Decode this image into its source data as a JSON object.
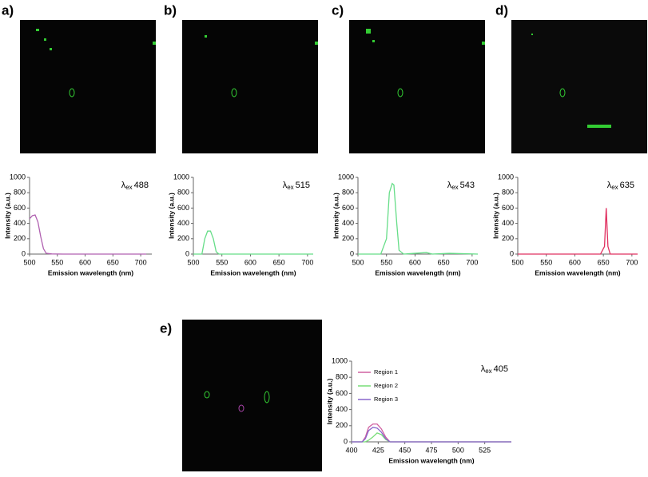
{
  "chart_data": [
    {
      "type": "line",
      "panel": "a)",
      "annotation": {
        "symbol": "λ",
        "subscript": "ex",
        "text": "488"
      },
      "ylabel": "Intensity (a.u.)",
      "xlabel": "Emission wavelength (nm)",
      "x": [
        500,
        505,
        510,
        515,
        520,
        525,
        530,
        540,
        560,
        600,
        650,
        700,
        710
      ],
      "series": [
        {
          "color": "#b060b0",
          "values": [
            460,
            500,
            510,
            420,
            230,
            70,
            10,
            2,
            0,
            0,
            0,
            0,
            0
          ]
        }
      ],
      "xlim": [
        500,
        720
      ],
      "xticks": [
        500,
        550,
        600,
        650,
        700
      ],
      "ylim": [
        0,
        1000
      ],
      "yticks": [
        0,
        200,
        400,
        600,
        800,
        1000
      ]
    },
    {
      "type": "line",
      "panel": "b)",
      "annotation": {
        "symbol": "λ",
        "subscript": "ex",
        "text": "515"
      },
      "ylabel": "Intensity (a.u.)",
      "xlabel": "Emission wavelength (nm)",
      "x": [
        500,
        515,
        520,
        525,
        530,
        535,
        540,
        545,
        600,
        700,
        710
      ],
      "series": [
        {
          "color": "#66dd88",
          "values": [
            0,
            0,
            200,
            300,
            300,
            200,
            30,
            0,
            0,
            0,
            0
          ]
        }
      ],
      "xlim": [
        500,
        710
      ],
      "xticks": [
        500,
        550,
        600,
        650,
        700
      ],
      "ylim": [
        0,
        1000
      ],
      "yticks": [
        0,
        200,
        400,
        600,
        800,
        1000
      ]
    },
    {
      "type": "line",
      "panel": "c)",
      "annotation": {
        "symbol": "λ",
        "subscript": "ex",
        "text": "543"
      },
      "ylabel": "Intensity (a.u.)",
      "xlabel": "Emission wavelength (nm)",
      "x": [
        500,
        540,
        550,
        555,
        560,
        563,
        568,
        572,
        580,
        620,
        630,
        660,
        710
      ],
      "series": [
        {
          "color": "#66dd88",
          "values": [
            0,
            0,
            200,
            800,
            920,
            900,
            400,
            50,
            0,
            20,
            0,
            10,
            0
          ]
        }
      ],
      "xlim": [
        500,
        710
      ],
      "xticks": [
        500,
        550,
        600,
        650,
        700
      ],
      "ylim": [
        0,
        1000
      ],
      "yticks": [
        0,
        200,
        400,
        600,
        800,
        1000
      ]
    },
    {
      "type": "line",
      "panel": "d)",
      "annotation": {
        "symbol": "λ",
        "subscript": "ex",
        "text": "635"
      },
      "ylabel": "Intensity (a.u.)",
      "xlabel": "Emission wavelength (nm)",
      "x": [
        500,
        645,
        652,
        655,
        658,
        662,
        710
      ],
      "series": [
        {
          "color": "#e03060",
          "values": [
            0,
            0,
            100,
            600,
            100,
            0,
            0
          ]
        }
      ],
      "xlim": [
        500,
        710
      ],
      "xticks": [
        500,
        550,
        600,
        650,
        700
      ],
      "ylim": [
        0,
        1000
      ],
      "yticks": [
        0,
        200,
        400,
        600,
        800,
        1000
      ]
    },
    {
      "type": "line",
      "panel": "e)",
      "annotation": {
        "symbol": "λ",
        "subscript": "ex",
        "text": "405"
      },
      "ylabel": "Intensity (a.u.)",
      "xlabel": "Emission wavelength (nm)",
      "x": [
        400,
        410,
        413,
        416,
        420,
        424,
        428,
        432,
        436,
        445,
        550
      ],
      "series": [
        {
          "name": "Region 1",
          "color": "#d060a0",
          "values": [
            0,
            0,
            60,
            180,
            220,
            220,
            160,
            60,
            0,
            0,
            0
          ]
        },
        {
          "name": "Region 2",
          "color": "#77dd77",
          "values": [
            0,
            0,
            0,
            20,
            60,
            110,
            90,
            30,
            0,
            0,
            0
          ]
        },
        {
          "name": "Region 3",
          "color": "#8866cc",
          "values": [
            0,
            0,
            40,
            140,
            180,
            170,
            120,
            40,
            0,
            0,
            0
          ]
        }
      ],
      "legend": "upper left",
      "xlim": [
        400,
        550
      ],
      "xticks": [
        400,
        425,
        450,
        475,
        500,
        525
      ],
      "ylim": [
        0,
        1000
      ],
      "yticks": [
        0,
        200,
        400,
        600,
        800,
        1000
      ]
    }
  ]
}
